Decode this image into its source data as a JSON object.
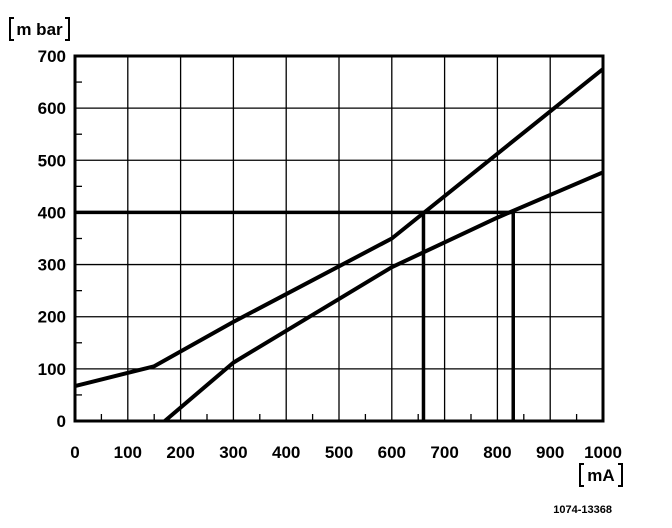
{
  "chart_data": {
    "type": "line",
    "xlabel": "mA",
    "ylabel": "m bar",
    "xlim": [
      0,
      1000
    ],
    "ylim": [
      0,
      700
    ],
    "x_ticks": [
      0,
      100,
      200,
      300,
      400,
      500,
      600,
      700,
      800,
      900,
      1000
    ],
    "y_ticks": [
      0,
      100,
      200,
      300,
      400,
      500,
      600,
      700
    ],
    "x_tick_labels": [
      "0",
      "100",
      "200",
      "300",
      "400",
      "500",
      "600",
      "700",
      "800",
      "900",
      "1000"
    ],
    "y_tick_labels": [
      "0",
      "100",
      "200",
      "300",
      "400",
      "500",
      "600",
      "700"
    ],
    "grid": true,
    "series": [
      {
        "points": [
          [
            0,
            67
          ],
          [
            150,
            105
          ],
          [
            300,
            190
          ],
          [
            600,
            350
          ],
          [
            1000,
            675
          ]
        ]
      },
      {
        "points": [
          [
            170,
            0
          ],
          [
            300,
            112
          ],
          [
            600,
            295
          ],
          [
            800,
            390
          ],
          [
            1000,
            477
          ]
        ]
      }
    ],
    "annotations": {
      "horizontal_ref": {
        "y": 400,
        "x_from": 0,
        "x_to": 830
      },
      "vertical_refs": [
        {
          "x": 660,
          "y_from": 0,
          "y_to": 400
        },
        {
          "x": 830,
          "y_from": 0,
          "y_to": 400
        }
      ]
    },
    "figure_code": "1074-13368"
  }
}
